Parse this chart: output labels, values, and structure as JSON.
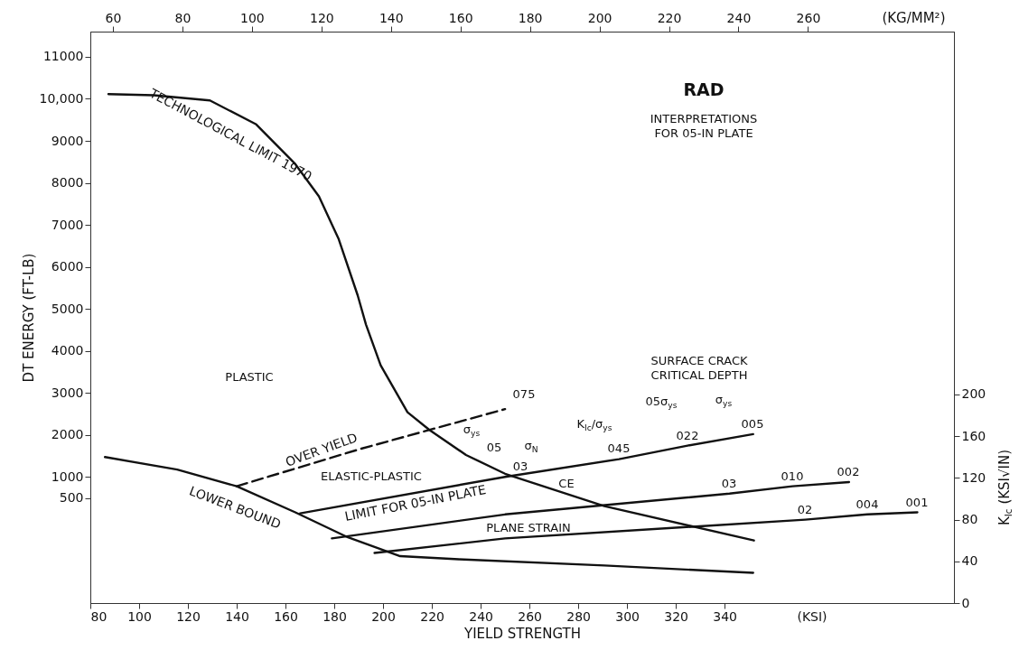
{
  "chart_data": {
    "type": "line",
    "xlabel": "YIELD STRENGTH",
    "ylabel": "DT ENERGY (FT-LB)",
    "y2label": "K$_{Ic}$ (KSI√IN)",
    "x2label": "(KG/MM²)",
    "xlim": [
      80,
      434
    ],
    "xticks": [
      80,
      100,
      120,
      140,
      160,
      180,
      200,
      220,
      240,
      260,
      280,
      300,
      320,
      340
    ],
    "x2lim": [
      53.5,
      302
    ],
    "x2ticks": [
      60,
      80,
      100,
      120,
      140,
      160,
      180,
      200,
      220,
      240,
      260
    ],
    "ylim": [
      -2000,
      11600
    ],
    "yticks": [
      500,
      1000,
      2000,
      3000,
      4000,
      5000,
      6000,
      7000,
      8000,
      9000,
      {
        "value": 10000,
        "label": "10,000"
      },
      11000
    ],
    "y2lim": [
      0,
      548
    ],
    "y2ticks": [
      0,
      40,
      80,
      120,
      160,
      200
    ],
    "grid": false,
    "series": [
      {
        "name": "TECHNOLOGICAL LIMIT 1970",
        "color": "#111111",
        "axis": "y2",
        "x": [
          87.4,
          106,
          129,
          148,
          164,
          173.7,
          181.8,
          189.6,
          193,
          199,
          210,
          219,
          234,
          250,
          290.7,
          352
        ],
        "values": [
          488,
          487,
          482,
          459,
          421,
          390,
          349,
          295,
          267,
          228,
          183,
          166,
          142,
          124,
          93,
          60
        ]
      },
      {
        "name": "LOWER BOUND",
        "color": "#111111",
        "axis": "y2",
        "x": [
          86,
          115.6,
          140,
          164,
          185.6,
          207,
          231,
          290.7,
          351.7
        ],
        "values": [
          140,
          128,
          112,
          87,
          63,
          45,
          42,
          36,
          29
        ]
      },
      {
        "name": "OVER YIELD",
        "color": "#111111",
        "axis": "y2",
        "line_style": "dashed",
        "x": [
          140,
          191,
          250
        ],
        "values": [
          112,
          148,
          186
        ]
      },
      {
        "name": "LIMIT FOR 05-IN PLATE",
        "color": "#111111",
        "axis": "y2",
        "x": [
          166,
          250,
          296.7,
          324.8,
          351.7
        ],
        "values": [
          86,
          121,
          138,
          151,
          162
        ]
      },
      {
        "color": "#111111",
        "axis": "y2",
        "x": [
          179,
          250,
          342,
          367.8,
          391
        ],
        "values": [
          62,
          85,
          105,
          112,
          116
        ]
      },
      {
        "color": "#111111",
        "axis": "y2",
        "x": [
          196.5,
          250,
          373,
          398.5,
          419
        ],
        "values": [
          48,
          62,
          80,
          85,
          87
        ]
      }
    ],
    "annotations": [
      "RAD",
      "INTERPRETATIONS FOR 05-IN PLATE",
      "PLASTIC",
      "ELASTIC-PLASTIC",
      "PLANE STRAIN",
      "CE",
      "SURFACE CRACK CRITICAL DEPTH",
      "05σ$_{ys}$",
      "σ$_{ys}$",
      "K$_{Ic}$/σ$_{ys}$",
      "σ$_{ys}$",
      "05",
      "σ$_{N}$",
      "03",
      "(KSI)",
      "075",
      "045",
      "022",
      "005",
      "03",
      "010",
      "002",
      "02",
      "004",
      "001"
    ]
  }
}
